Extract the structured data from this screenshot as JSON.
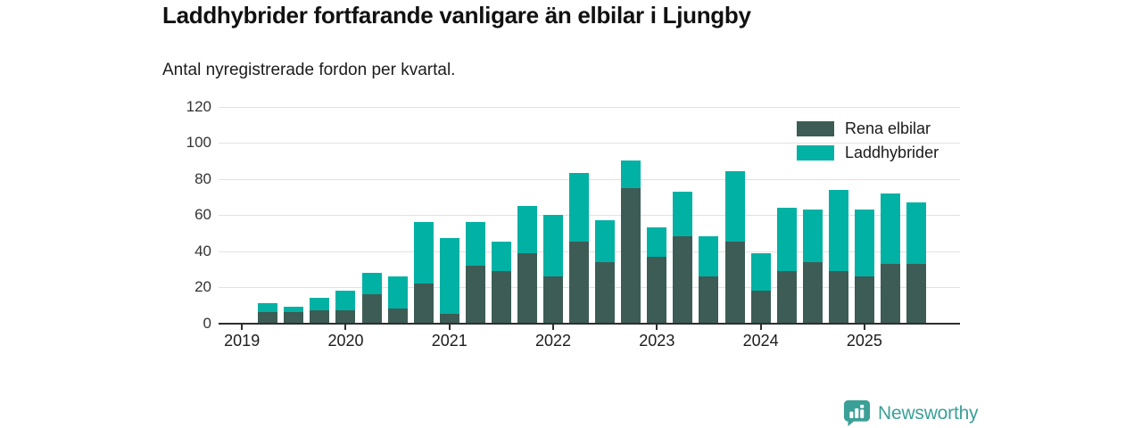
{
  "header": {
    "title": "Laddhybrider fortfarande vanligare än elbilar i Ljungby",
    "subtitle": "Antal nyregistrerade fordon per kvartal."
  },
  "legend": {
    "items": [
      {
        "label": "Rena elbilar",
        "color": "#3d5c55"
      },
      {
        "label": "Laddhybrider",
        "color": "#00b1a4"
      }
    ]
  },
  "branding": {
    "name": "Newsworthy",
    "color": "#3ba097"
  },
  "chart_data": {
    "type": "bar",
    "stacked": true,
    "title": "Laddhybrider fortfarande vanligare än elbilar i Ljungby",
    "subtitle": "Antal nyregistrerade fordon per kvartal.",
    "grid": true,
    "legend_position": "top-right-inside",
    "ylim": [
      0,
      120
    ],
    "yticks": [
      0,
      20,
      40,
      60,
      80,
      100,
      120
    ],
    "categories": [
      "2019 Q1",
      "2019 Q2",
      "2019 Q3",
      "2019 Q4",
      "2020 Q1",
      "2020 Q2",
      "2020 Q3",
      "2020 Q4",
      "2021 Q1",
      "2021 Q2",
      "2021 Q3",
      "2021 Q4",
      "2022 Q1",
      "2022 Q2",
      "2022 Q3",
      "2022 Q4",
      "2023 Q1",
      "2023 Q2",
      "2023 Q3",
      "2023 Q4",
      "2024 Q1",
      "2024 Q2",
      "2024 Q3",
      "2024 Q4",
      "2025 Q1",
      "2025 Q2",
      "2025 Q3"
    ],
    "x_tick_labels": [
      "2019",
      "2020",
      "2021",
      "2022",
      "2023",
      "2024",
      "2025"
    ],
    "x_tick_indices": [
      0,
      4,
      8,
      12,
      16,
      20,
      24
    ],
    "series": [
      {
        "name": "Rena elbilar",
        "color": "#3d5c55",
        "values": [
          0,
          6,
          6,
          7,
          7,
          16,
          8,
          22,
          5,
          32,
          29,
          39,
          26,
          45,
          34,
          75,
          37,
          48,
          26,
          45,
          18,
          29,
          34,
          29,
          26,
          33,
          33
        ]
      },
      {
        "name": "Laddhybrider",
        "color": "#00b1a4",
        "values": [
          0,
          5,
          3,
          7,
          11,
          12,
          18,
          34,
          42,
          24,
          16,
          26,
          34,
          38,
          23,
          15,
          16,
          25,
          22,
          39,
          21,
          35,
          29,
          45,
          37,
          39,
          34
        ]
      }
    ]
  }
}
